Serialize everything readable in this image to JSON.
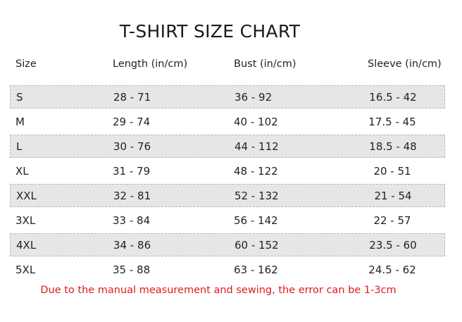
{
  "title": "T-SHIRT SIZE CHART",
  "headers": [
    "Size",
    "Length (in/cm)",
    "Bust (in/cm)",
    "Sleeve (in/cm)"
  ],
  "rows": [
    [
      "S",
      "28 - 71",
      "36 - 92",
      "16.5 - 42"
    ],
    [
      "M",
      "29 - 74",
      "40 - 102",
      "17.5 - 45"
    ],
    [
      "L",
      "30 - 76",
      "44 - 112",
      "18.5 - 48"
    ],
    [
      "XL",
      "31 - 79",
      "48 - 122",
      "20 - 51"
    ],
    [
      "XXL",
      "32 - 81",
      "52 - 132",
      "21 - 54"
    ],
    [
      "3XL",
      "33 - 84",
      "56 - 142",
      "22 - 57"
    ],
    [
      "4XL",
      "34 - 86",
      "60 - 152",
      "23.5 - 60"
    ],
    [
      "5XL",
      "35 - 88",
      "63 - 162",
      "24.5 - 62"
    ]
  ],
  "note": "Due to the manual measurement and sewing, the error can be 1-3cm",
  "colors": {
    "note": "#e01b1b",
    "shaded_row": "#e6e6e8"
  }
}
